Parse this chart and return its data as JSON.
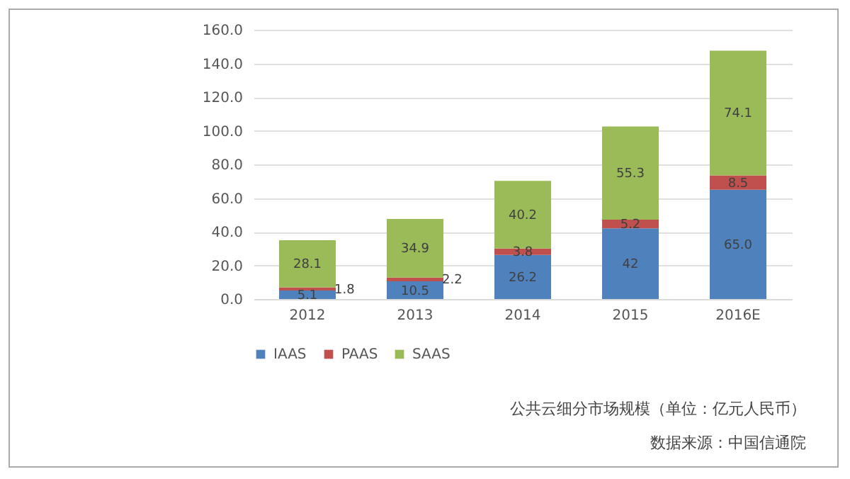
{
  "chart_data": {
    "type": "bar",
    "stacked": true,
    "categories": [
      "2012",
      "2013",
      "2014",
      "2015",
      "2016E"
    ],
    "series": [
      {
        "name": "IAAS",
        "color": "#4f81bd",
        "values": [
          5.1,
          10.5,
          26.2,
          42,
          65.0
        ],
        "value_labels": [
          "5.1",
          "10.5",
          "26.2",
          "42",
          "65.0"
        ]
      },
      {
        "name": "PAAS",
        "color": "#c0504d",
        "values": [
          1.8,
          2.2,
          3.8,
          5.2,
          8.5
        ],
        "value_labels": [
          "1.8",
          "2.2",
          "3.8",
          "5.2",
          "8.5"
        ]
      },
      {
        "name": "SAAS",
        "color": "#9bbb59",
        "values": [
          28.1,
          34.9,
          40.2,
          55.3,
          74.1
        ],
        "value_labels": [
          "28.1",
          "34.9",
          "40.2",
          "55.3",
          "74.1"
        ]
      }
    ],
    "ylim": [
      0,
      160
    ],
    "yticks": [
      {
        "value": 0,
        "label": "0.0"
      },
      {
        "value": 20,
        "label": "20.0"
      },
      {
        "value": 40,
        "label": "40.0"
      },
      {
        "value": 60,
        "label": "60.0"
      },
      {
        "value": 80,
        "label": "80.0"
      },
      {
        "value": 100,
        "label": "100.0"
      },
      {
        "value": 120,
        "label": "120.0"
      },
      {
        "value": 140,
        "label": "140.0"
      },
      {
        "value": 160,
        "label": "160.0"
      }
    ],
    "grid": "y",
    "legend": "bottom",
    "annotations": [
      "公共云细分市场规模（单位：亿元人民币）",
      "数据来源：中国信通院"
    ]
  }
}
